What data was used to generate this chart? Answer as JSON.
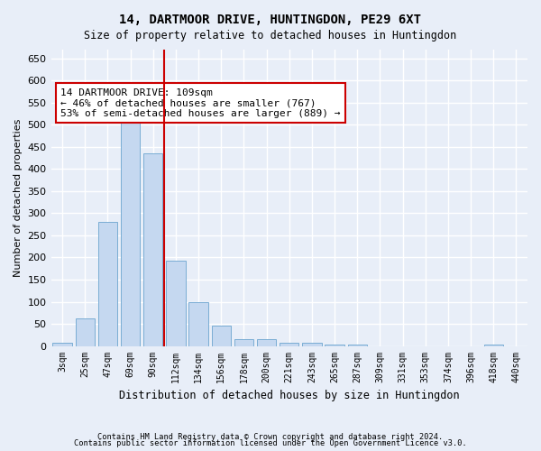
{
  "title": "14, DARTMOOR DRIVE, HUNTINGDON, PE29 6XT",
  "subtitle": "Size of property relative to detached houses in Huntingdon",
  "xlabel": "Distribution of detached houses by size in Huntingdon",
  "ylabel": "Number of detached properties",
  "bar_color": "#c5d8f0",
  "bar_edge_color": "#7aadd4",
  "categories": [
    "3sqm",
    "25sqm",
    "47sqm",
    "69sqm",
    "90sqm",
    "112sqm",
    "134sqm",
    "156sqm",
    "178sqm",
    "200sqm",
    "221sqm",
    "243sqm",
    "265sqm",
    "287sqm",
    "309sqm",
    "331sqm",
    "353sqm",
    "374sqm",
    "396sqm",
    "418sqm",
    "440sqm"
  ],
  "values": [
    8,
    63,
    280,
    515,
    435,
    192,
    100,
    47,
    15,
    15,
    8,
    8,
    3,
    3,
    0,
    0,
    0,
    0,
    0,
    3,
    0
  ],
  "ylim": [
    0,
    670
  ],
  "yticks": [
    0,
    50,
    100,
    150,
    200,
    250,
    300,
    350,
    400,
    450,
    500,
    550,
    600,
    650
  ],
  "vline_x": 4.5,
  "vline_color": "#cc0000",
  "annotation_text": "14 DARTMOOR DRIVE: 109sqm\n← 46% of detached houses are smaller (767)\n53% of semi-detached houses are larger (889) →",
  "annotation_box_color": "#ffffff",
  "annotation_box_edge": "#cc0000",
  "footer1": "Contains HM Land Registry data © Crown copyright and database right 2024.",
  "footer2": "Contains public sector information licensed under the Open Government Licence v3.0.",
  "bg_color": "#e8eef8",
  "plot_bg_color": "#e8eef8",
  "grid_color": "#ffffff"
}
